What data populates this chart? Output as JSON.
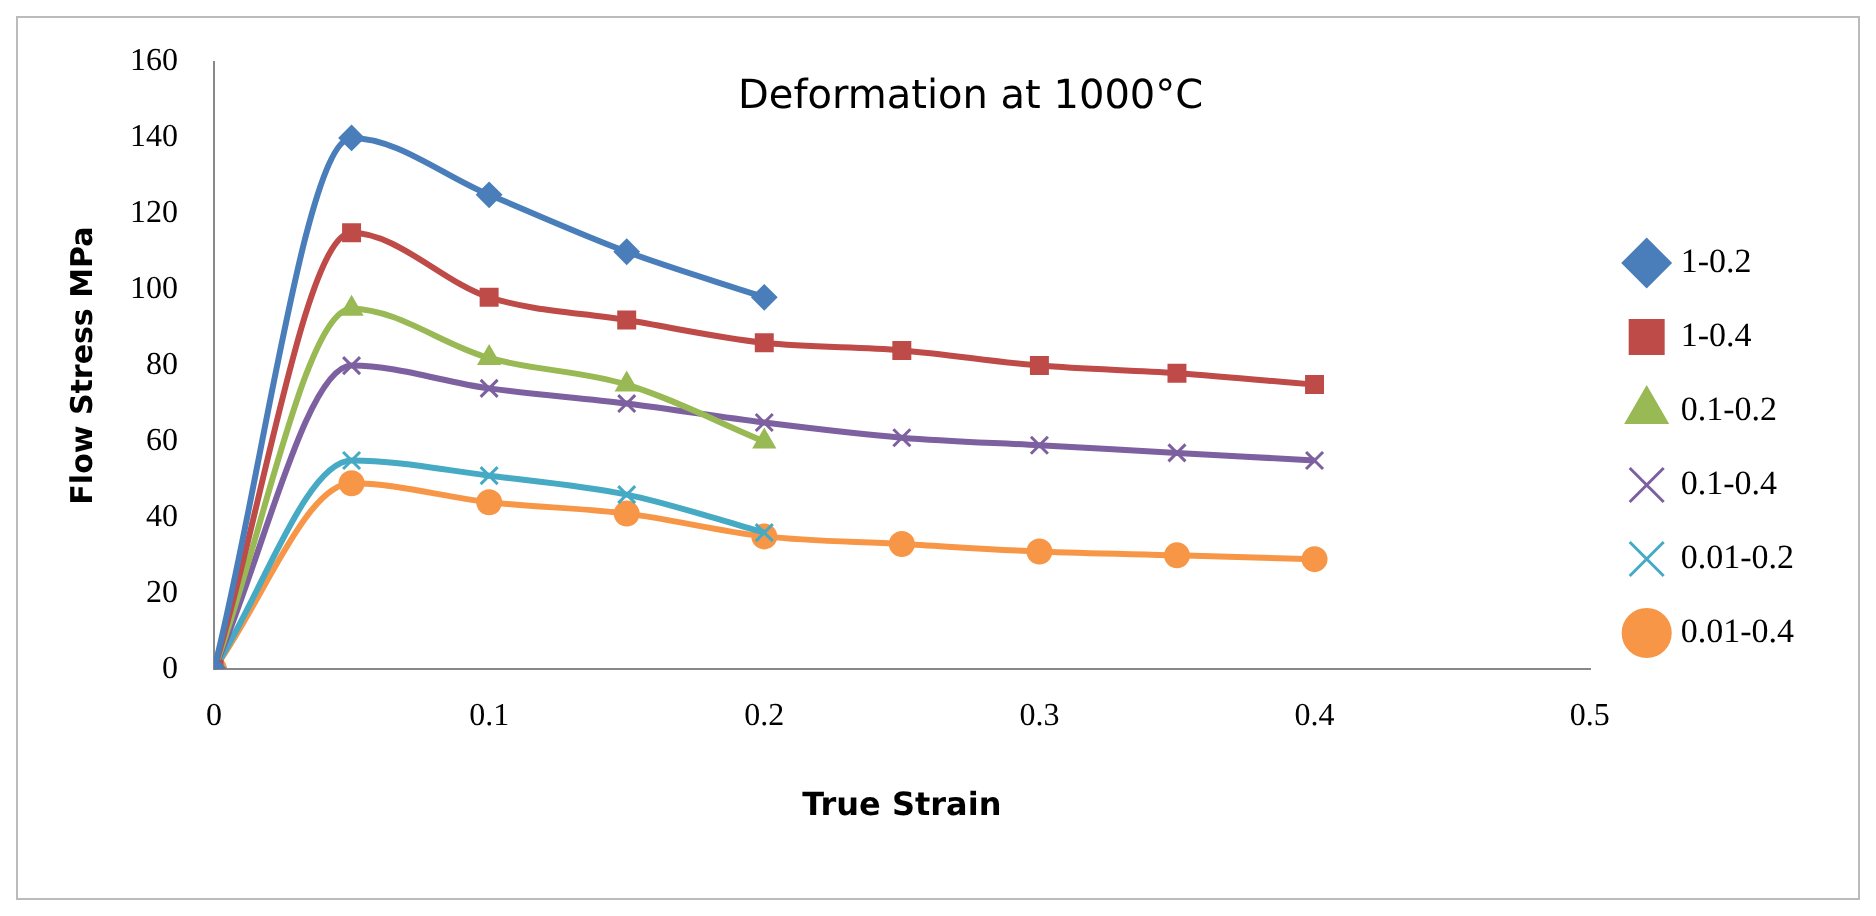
{
  "chart_data": {
    "type": "line",
    "title": "Deformation at 1000°C",
    "xlabel": "True Strain",
    "ylabel": "Flow Stress MPa",
    "xlim": [
      0,
      0.5
    ],
    "xticks": [
      0,
      0.1,
      0.2,
      0.3,
      0.4,
      0.5
    ],
    "ylim": [
      0,
      160
    ],
    "yticks": [
      0,
      20,
      40,
      60,
      80,
      100,
      120,
      140,
      160
    ],
    "grid": false,
    "legend": "right",
    "series": [
      {
        "name": "1-0.2",
        "color": "#4a7ebb",
        "marker": "diamond",
        "x": [
          0,
          0.05,
          0.1,
          0.15,
          0.2
        ],
        "values": [
          0,
          140,
          125,
          110,
          98
        ]
      },
      {
        "name": "1-0.4",
        "color": "#be4b48",
        "marker": "square",
        "x": [
          0,
          0.05,
          0.1,
          0.15,
          0.2,
          0.25,
          0.3,
          0.35,
          0.4
        ],
        "values": [
          0,
          115,
          98,
          92,
          86,
          84,
          80,
          78,
          75
        ]
      },
      {
        "name": "0.1-0.2",
        "color": "#98b954",
        "marker": "triangle",
        "x": [
          0,
          0.05,
          0.1,
          0.15,
          0.2
        ],
        "values": [
          0,
          95,
          82,
          75,
          60
        ]
      },
      {
        "name": "0.1-0.4",
        "color": "#7d60a0",
        "marker": "cross",
        "x": [
          0,
          0.05,
          0.1,
          0.15,
          0.2,
          0.25,
          0.3,
          0.35,
          0.4
        ],
        "values": [
          0,
          80,
          74,
          70,
          65,
          61,
          59,
          57,
          55
        ]
      },
      {
        "name": "0.01-0.2",
        "color": "#46aac5",
        "marker": "cross",
        "x": [
          0,
          0.05,
          0.1,
          0.15,
          0.2
        ],
        "values": [
          0,
          55,
          51,
          46,
          36
        ]
      },
      {
        "name": "0.01-0.4",
        "color": "#f79646",
        "marker": "circle",
        "x": [
          0,
          0.05,
          0.1,
          0.15,
          0.2,
          0.25,
          0.3,
          0.35,
          0.4
        ],
        "values": [
          0,
          49,
          44,
          41,
          35,
          33,
          31,
          30,
          29
        ]
      }
    ]
  }
}
